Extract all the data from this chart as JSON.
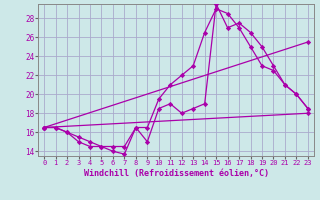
{
  "background_color": "#cde8e8",
  "grid_color": "#aaaacc",
  "line_color": "#aa00aa",
  "xlabel": "Windchill (Refroidissement éolien,°C)",
  "xlim": [
    -0.5,
    23.5
  ],
  "ylim": [
    13.5,
    29.5
  ],
  "yticks": [
    14,
    16,
    18,
    20,
    22,
    24,
    26,
    28
  ],
  "xticks": [
    0,
    1,
    2,
    3,
    4,
    5,
    6,
    7,
    8,
    9,
    10,
    11,
    12,
    13,
    14,
    15,
    16,
    17,
    18,
    19,
    20,
    21,
    22,
    23
  ],
  "series": [
    {
      "x": [
        0,
        1,
        2,
        3,
        4,
        5,
        6,
        7,
        8,
        9,
        10,
        11,
        12,
        13,
        14,
        15,
        16,
        17,
        18,
        19,
        20,
        21,
        22,
        23
      ],
      "y": [
        16.5,
        16.5,
        16.0,
        15.0,
        14.5,
        14.5,
        14.0,
        13.7,
        16.5,
        15.0,
        18.5,
        19.0,
        18.0,
        18.5,
        19.0,
        29.5,
        27.0,
        27.5,
        26.5,
        25.0,
        23.0,
        21.0,
        20.0,
        18.5
      ]
    },
    {
      "x": [
        0,
        1,
        2,
        3,
        4,
        5,
        6,
        7,
        8,
        9,
        10,
        11,
        12,
        13,
        14,
        15,
        16,
        17,
        18,
        19,
        20,
        21,
        22,
        23
      ],
      "y": [
        16.5,
        16.5,
        16.0,
        15.5,
        15.0,
        14.5,
        14.5,
        14.5,
        16.5,
        16.5,
        19.5,
        21.0,
        22.0,
        23.0,
        26.5,
        29.0,
        28.5,
        27.0,
        25.0,
        23.0,
        22.5,
        21.0,
        20.0,
        18.5
      ]
    },
    {
      "x": [
        0,
        23
      ],
      "y": [
        16.5,
        18.0
      ]
    },
    {
      "x": [
        0,
        23
      ],
      "y": [
        16.5,
        25.5
      ]
    }
  ]
}
